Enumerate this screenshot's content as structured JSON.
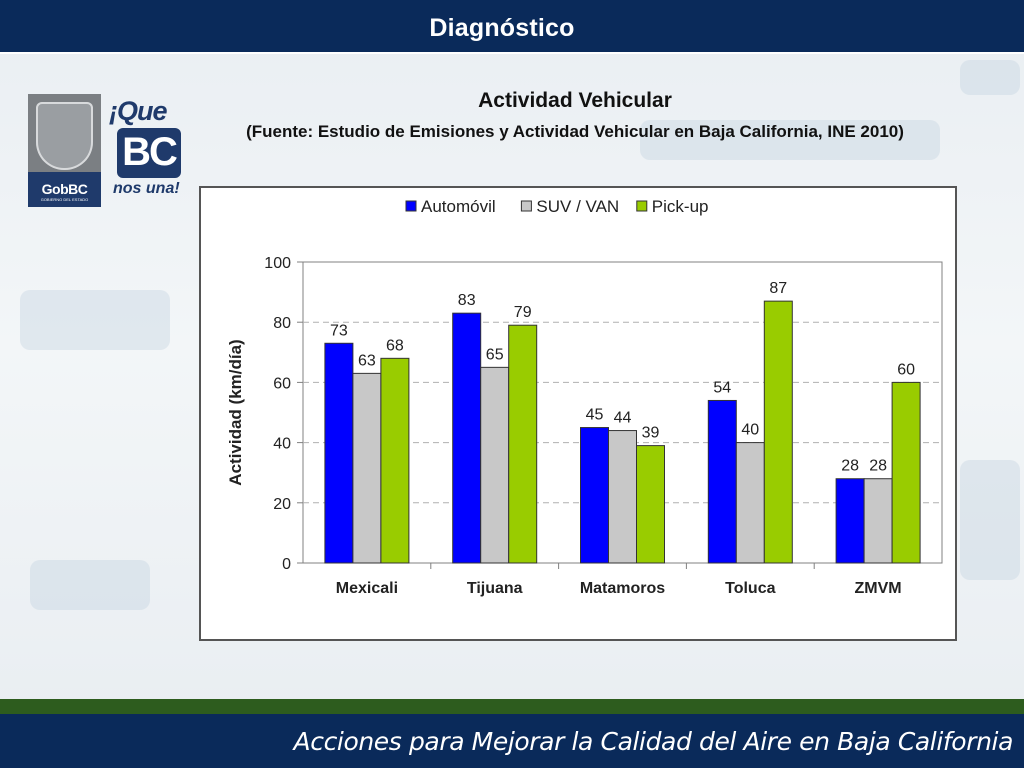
{
  "header": {
    "title": "Diagnóstico"
  },
  "slide": {
    "title": "Actividad Vehicular",
    "source": "(Fuente: Estudio de Emisiones y Actividad Vehicular en Baja California, INE 2010)"
  },
  "logos": {
    "gob_text": "GobBC",
    "gob_subtext": "GOBIERNO DEL ESTADO",
    "que_text": "¡Que",
    "bc_text": "BC",
    "nos_text": "nos una!"
  },
  "footer": {
    "text": "Acciones  para Mejorar la Calidad del Aire en Baja California"
  },
  "colors": {
    "header_bg": "#0a2a5a",
    "accent_green": "#2d5c1e",
    "automovil": "#0000ff",
    "suv_van": "#c8c8c8",
    "pickup": "#99cc00"
  },
  "chart_data": {
    "type": "bar",
    "categories": [
      "Mexicali",
      "Tijuana",
      "Matamoros",
      "Toluca",
      "ZMVM"
    ],
    "series": [
      {
        "name": "Automóvil",
        "color": "#0000ff",
        "values": [
          73,
          83,
          45,
          54,
          28
        ]
      },
      {
        "name": "SUV / VAN",
        "color": "#c8c8c8",
        "values": [
          63,
          65,
          44,
          40,
          28
        ]
      },
      {
        "name": "Pick-up",
        "color": "#99cc00",
        "values": [
          68,
          79,
          39,
          87,
          60
        ]
      }
    ],
    "ylabel": "Actividad (km/día)",
    "ylim": [
      0,
      100
    ],
    "yticks": [
      0,
      20,
      40,
      60,
      80,
      100
    ],
    "grid": true,
    "legend": "top"
  }
}
